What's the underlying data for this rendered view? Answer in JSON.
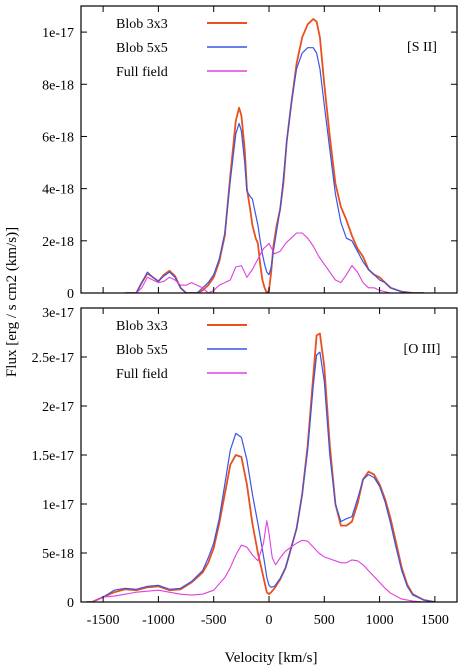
{
  "figure": {
    "xlabel": "Velocity [km/s]",
    "ylabel": "Flux [erg / s cm2 (km/s)]"
  },
  "colors": {
    "blob3": "#e8501e",
    "blob5": "#3a55e6",
    "full": "#e040e0"
  },
  "chart_data": [
    {
      "type": "line",
      "panel_label": "[S II]",
      "xlim": [
        -1700,
        1700
      ],
      "ylim": [
        0,
        1.1e-17
      ],
      "x_ticks": [
        -1500,
        -1000,
        -500,
        0,
        500,
        1000,
        1500
      ],
      "x_tick_labels": [
        "",
        "",
        "",
        "",
        "",
        "",
        ""
      ],
      "y_ticks": [
        0,
        2e-18,
        4e-18,
        6e-18,
        8e-18,
        1e-17
      ],
      "y_tick_labels": [
        "0",
        "2e-18",
        "4e-18",
        "6e-18",
        "8e-18",
        "1e-17"
      ],
      "grid": false,
      "legend": "top-left",
      "series": [
        {
          "name": "Blob 3x3",
          "color_key": "blob3",
          "width": 1.8,
          "dash": "",
          "x": [
            -1300,
            -1200,
            -1150,
            -1100,
            -1050,
            -1000,
            -950,
            -900,
            -850,
            -800,
            -750,
            -700,
            -650,
            -600,
            -550,
            -500,
            -450,
            -400,
            -350,
            -300,
            -270,
            -250,
            -220,
            -200,
            -170,
            -150,
            -120,
            -100,
            -80,
            -60,
            -40,
            -20,
            0,
            20,
            40,
            70,
            100,
            130,
            160,
            200,
            250,
            300,
            350,
            400,
            430,
            460,
            500,
            550,
            600,
            650,
            700,
            750,
            800,
            850,
            900,
            950,
            1000,
            1050,
            1100,
            1200,
            1300,
            1400
          ],
          "values": [
            0.0,
            0.0,
            4e-19,
            7.5e-19,
            6e-19,
            4.5e-19,
            7e-19,
            8.5e-19,
            6.5e-19,
            2e-19,
            0.0,
            0.0,
            0.0,
            1e-19,
            3e-19,
            6e-19,
            1.2e-18,
            2.2e-18,
            4.5e-18,
            6.6e-18,
            7.1e-18,
            6.8e-18,
            5.5e-18,
            4e-18,
            3.2e-18,
            2.6e-18,
            2.1e-18,
            1.9e-18,
            1.1e-18,
            5e-19,
            2e-19,
            0.0,
            1e-19,
            8e-19,
            1.8e-18,
            2.6e-18,
            3.2e-18,
            4.2e-18,
            5.8e-18,
            7.2e-18,
            8.8e-18,
            9.8e-18,
            1.03e-17,
            1.05e-17,
            1.04e-17,
            9.8e-18,
            8e-18,
            6e-18,
            4.2e-18,
            3.3e-18,
            2.8e-18,
            2.2e-18,
            1.7e-18,
            1.4e-18,
            9e-19,
            7e-19,
            6e-19,
            4e-19,
            2e-19,
            5e-20,
            0.0,
            0.0
          ]
        },
        {
          "name": "Blob 5x5",
          "color_key": "blob5",
          "width": 1.2,
          "dash": "",
          "x": [
            -1300,
            -1200,
            -1150,
            -1100,
            -1050,
            -1000,
            -950,
            -900,
            -850,
            -800,
            -750,
            -700,
            -650,
            -600,
            -550,
            -500,
            -450,
            -400,
            -350,
            -300,
            -270,
            -250,
            -220,
            -200,
            -170,
            -150,
            -120,
            -100,
            -80,
            -60,
            -40,
            -20,
            0,
            20,
            40,
            70,
            100,
            130,
            160,
            200,
            250,
            300,
            350,
            400,
            430,
            460,
            500,
            550,
            600,
            650,
            700,
            750,
            800,
            850,
            900,
            950,
            1000,
            1050,
            1100,
            1200,
            1300,
            1400
          ],
          "values": [
            0.0,
            0.0,
            4e-19,
            8e-19,
            6e-19,
            4.5e-19,
            6.5e-19,
            8e-19,
            6e-19,
            2e-19,
            0.0,
            0.0,
            0.0,
            2e-19,
            4e-19,
            7e-19,
            1.3e-18,
            2.3e-18,
            4.3e-18,
            6.1e-18,
            6.5e-18,
            6.2e-18,
            5e-18,
            3.9e-18,
            3.7e-18,
            3.6e-18,
            3e-18,
            2.6e-18,
            2e-18,
            1.5e-18,
            1.1e-18,
            8e-19,
            7e-19,
            1e-18,
            1.6e-18,
            2.4e-18,
            3.2e-18,
            4.4e-18,
            5.8e-18,
            7.2e-18,
            8.6e-18,
            9.2e-18,
            9.4e-18,
            9.4e-18,
            9.2e-18,
            8.6e-18,
            7.2e-18,
            5.5e-18,
            3.8e-18,
            2.7e-18,
            2.1e-18,
            2e-18,
            1.6e-18,
            1.2e-18,
            9e-19,
            7e-19,
            5e-19,
            4e-19,
            2e-19,
            5e-20,
            0.0,
            0.0
          ]
        },
        {
          "name": "Full field",
          "color_key": "full",
          "width": 1.1,
          "dash": "",
          "x": [
            -1250,
            -1200,
            -1150,
            -1100,
            -1050,
            -1000,
            -950,
            -900,
            -850,
            -800,
            -750,
            -700,
            -650,
            -600,
            -550,
            -500,
            -450,
            -400,
            -350,
            -300,
            -250,
            -200,
            -150,
            -100,
            -50,
            0,
            50,
            100,
            150,
            200,
            250,
            300,
            350,
            400,
            450,
            500,
            550,
            600,
            650,
            700,
            750,
            800,
            850,
            900,
            950,
            1000,
            1100,
            1200,
            1300
          ],
          "values": [
            0.0,
            0.0,
            2e-19,
            6e-19,
            5e-19,
            4e-19,
            4.5e-19,
            6e-19,
            5e-19,
            3e-19,
            3e-19,
            4e-19,
            3e-19,
            2e-19,
            0.0,
            1e-19,
            3e-19,
            4e-19,
            5e-19,
            1e-18,
            1.05e-18,
            6e-19,
            9e-19,
            1.3e-18,
            1.7e-18,
            1.9e-18,
            1.5e-18,
            1.6e-18,
            1.9e-18,
            2.1e-18,
            2.3e-18,
            2.3e-18,
            2.1e-18,
            1.8e-18,
            1.4e-18,
            1.1e-18,
            8e-19,
            5e-19,
            4e-19,
            7e-19,
            1.05e-18,
            8e-19,
            4e-19,
            2e-19,
            2e-19,
            1e-19,
            0.0,
            0.0,
            0.0
          ]
        }
      ]
    },
    {
      "type": "line",
      "panel_label": "[O III]",
      "xlim": [
        -1700,
        1700
      ],
      "ylim": [
        0,
        3e-17
      ],
      "x_ticks": [
        -1500,
        -1000,
        -500,
        0,
        500,
        1000,
        1500
      ],
      "x_tick_labels": [
        "-1500",
        "-1000",
        "-500",
        "0",
        "500",
        "1000",
        "1500"
      ],
      "y_ticks": [
        0,
        5e-18,
        1e-17,
        1.5e-17,
        2e-17,
        2.5e-17,
        3e-17
      ],
      "y_tick_labels": [
        "0",
        "5e-18",
        "1e-17",
        "1.5e-17",
        "2e-17",
        "2.5e-17",
        "3e-17"
      ],
      "grid": false,
      "legend": "top-left",
      "series": [
        {
          "name": "Blob 3x3",
          "color_key": "blob3",
          "width": 1.8,
          "dash": "",
          "x": [
            -1650,
            -1600,
            -1500,
            -1400,
            -1300,
            -1200,
            -1100,
            -1000,
            -900,
            -800,
            -700,
            -600,
            -550,
            -500,
            -450,
            -400,
            -350,
            -300,
            -250,
            -200,
            -150,
            -100,
            -70,
            -40,
            -20,
            0,
            20,
            50,
            100,
            150,
            200,
            250,
            300,
            350,
            400,
            430,
            460,
            500,
            550,
            600,
            650,
            700,
            750,
            800,
            850,
            900,
            950,
            1000,
            1050,
            1100,
            1150,
            1200,
            1250,
            1300,
            1400,
            1500
          ],
          "values": [
            0.0,
            0.0,
            5e-19,
            1e-18,
            1.3e-18,
            1.2e-18,
            1.5e-18,
            1.6e-18,
            1.2e-18,
            1.3e-18,
            2e-18,
            3e-18,
            4e-18,
            5.5e-18,
            8e-18,
            1.1e-17,
            1.4e-17,
            1.5e-17,
            1.48e-17,
            1.2e-17,
            8e-18,
            5e-18,
            3.5e-18,
            2e-18,
            1e-18,
            8e-19,
            1e-18,
            1.4e-18,
            2.3e-18,
            3.5e-18,
            5.5e-18,
            7.5e-18,
            1.1e-17,
            1.6e-17,
            2.3e-17,
            2.72e-17,
            2.74e-17,
            2.4e-17,
            1.6e-17,
            1e-17,
            7.8e-18,
            7.8e-18,
            8.2e-18,
            1e-17,
            1.25e-17,
            1.33e-17,
            1.3e-17,
            1.2e-17,
            1.05e-17,
            8.5e-18,
            6e-18,
            3.5e-18,
            1.8e-18,
            8e-19,
            2e-19,
            0.0
          ]
        },
        {
          "name": "Blob 5x5",
          "color_key": "blob5",
          "width": 1.2,
          "dash": "",
          "x": [
            -1650,
            -1600,
            -1500,
            -1400,
            -1300,
            -1200,
            -1100,
            -1000,
            -900,
            -800,
            -700,
            -600,
            -550,
            -500,
            -450,
            -400,
            -350,
            -300,
            -250,
            -200,
            -150,
            -100,
            -70,
            -40,
            -20,
            0,
            20,
            50,
            100,
            150,
            200,
            250,
            300,
            350,
            400,
            430,
            460,
            500,
            550,
            600,
            650,
            700,
            750,
            800,
            850,
            900,
            950,
            1000,
            1050,
            1100,
            1150,
            1200,
            1250,
            1300,
            1400,
            1500
          ],
          "values": [
            0.0,
            0.0,
            5e-19,
            1.2e-18,
            1.4e-18,
            1.3e-18,
            1.6e-18,
            1.7e-18,
            1.3e-18,
            1.4e-18,
            2.1e-18,
            3.2e-18,
            4.5e-18,
            6e-18,
            8.5e-18,
            1.2e-17,
            1.55e-17,
            1.72e-17,
            1.68e-17,
            1.45e-17,
            1.1e-17,
            8e-18,
            6e-18,
            4e-18,
            2.5e-18,
            1.7e-18,
            1.5e-18,
            1.6e-18,
            2.4e-18,
            3.5e-18,
            5.5e-18,
            7.5e-18,
            1.1e-17,
            1.55e-17,
            2.2e-17,
            2.52e-17,
            2.55e-17,
            2.25e-17,
            1.5e-17,
            1e-17,
            8.2e-18,
            8.5e-18,
            8.7e-18,
            1.05e-17,
            1.25e-17,
            1.3e-17,
            1.27e-17,
            1.18e-17,
            1.02e-17,
            8e-18,
            5.5e-18,
            3.2e-18,
            1.6e-18,
            7e-19,
            2e-19,
            0.0
          ]
        },
        {
          "name": "Full field",
          "color_key": "full",
          "width": 1.1,
          "dash": "",
          "x": [
            -1600,
            -1500,
            -1400,
            -1300,
            -1200,
            -1100,
            -1000,
            -900,
            -800,
            -700,
            -600,
            -500,
            -400,
            -350,
            -300,
            -250,
            -200,
            -150,
            -100,
            -50,
            -20,
            0,
            30,
            60,
            100,
            150,
            200,
            250,
            300,
            350,
            400,
            450,
            500,
            550,
            600,
            650,
            700,
            750,
            800,
            850,
            900,
            950,
            1000,
            1050,
            1100,
            1200,
            1300,
            1400,
            1500
          ],
          "values": [
            0.0,
            5e-19,
            6e-19,
            8e-19,
            1e-18,
            1.1e-18,
            1.2e-18,
            1e-18,
            8e-19,
            7e-19,
            8e-19,
            1.2e-18,
            2.5e-18,
            3.5e-18,
            4.8e-18,
            5.8e-18,
            5.6e-18,
            4.8e-18,
            4.2e-18,
            6e-18,
            8.3e-18,
            7e-18,
            4.5e-18,
            3.8e-18,
            4.5e-18,
            5.2e-18,
            5.6e-18,
            6e-18,
            6.3e-18,
            6.2e-18,
            5.6e-18,
            5e-18,
            4.6e-18,
            4.4e-18,
            4.2e-18,
            4e-18,
            4e-18,
            4.3e-18,
            4.2e-18,
            3.8e-18,
            3.2e-18,
            2.6e-18,
            2e-18,
            1.4e-18,
            9e-19,
            3e-19,
            1e-19,
            0.0,
            0.0
          ]
        }
      ]
    }
  ]
}
